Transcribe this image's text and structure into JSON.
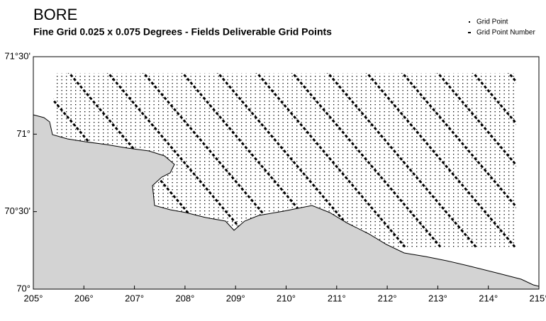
{
  "map": {
    "title": "BORE",
    "subtitle": "Fine Grid 0.025 x 0.075 Degrees - Fields Deliverable Grid Points",
    "legend": [
      "Grid Point",
      "Grid Point Number"
    ],
    "xlim": [
      205,
      215
    ],
    "ylim": [
      70,
      71.5
    ],
    "xticks": [
      {
        "value": 205,
        "label": "205°"
      },
      {
        "value": 206,
        "label": "206°"
      },
      {
        "value": 207,
        "label": "207°"
      },
      {
        "value": 208,
        "label": "208°"
      },
      {
        "value": 209,
        "label": "209°"
      },
      {
        "value": 210,
        "label": "210°"
      },
      {
        "value": 211,
        "label": "211°"
      },
      {
        "value": 212,
        "label": "212°"
      },
      {
        "value": 213,
        "label": "213°"
      },
      {
        "value": 214,
        "label": "214°"
      },
      {
        "value": 215,
        "label": "215°"
      }
    ],
    "yticks": [
      {
        "value": 70,
        "label": "70°"
      },
      {
        "value": 70.5,
        "label": "70°30'"
      },
      {
        "value": 71,
        "label": "71°"
      },
      {
        "value": 71.5,
        "label": "71°30'"
      }
    ]
  }
}
